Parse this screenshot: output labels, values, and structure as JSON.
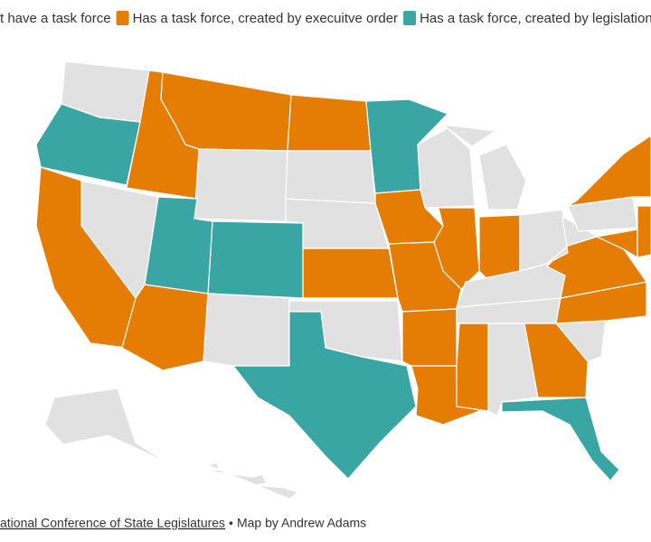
{
  "legend": [
    {
      "label": "t have a task force",
      "color": "#e1e1e1"
    },
    {
      "label": "Has a task force, created by execuitve order",
      "color": "#e57c04"
    },
    {
      "label": "Has a task force, created by legislation",
      "color": "#3aa6a4"
    }
  ],
  "regions": [
    0,
    2,
    1,
    1,
    0,
    1,
    0,
    0,
    2,
    0,
    0,
    0,
    1,
    1,
    1,
    0,
    1,
    2,
    2,
    0,
    1,
    1,
    0,
    0,
    2,
    1,
    1,
    1,
    1,
    0,
    1,
    2,
    0,
    0,
    0,
    1,
    1,
    0,
    0,
    1,
    1,
    1,
    0,
    0
  ],
  "footer": {
    "source": "ational Conference of State Legislatures",
    "separator": "•",
    "credit": "Map by Andrew Adams"
  }
}
